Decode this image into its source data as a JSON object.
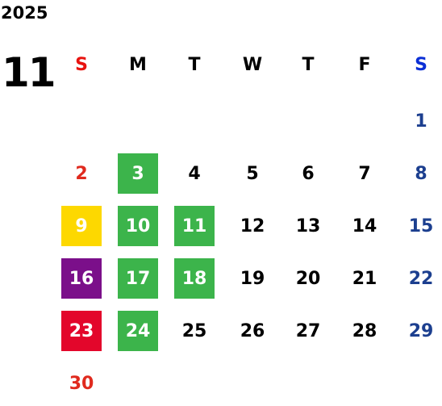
{
  "calendar": {
    "year": "2025",
    "month": "11",
    "weekdays": [
      {
        "label": "S",
        "color": "#e8130f"
      },
      {
        "label": "M",
        "color": "#000000"
      },
      {
        "label": "T",
        "color": "#000000"
      },
      {
        "label": "W",
        "color": "#000000"
      },
      {
        "label": "T",
        "color": "#000000"
      },
      {
        "label": "F",
        "color": "#000000"
      },
      {
        "label": "S",
        "color": "#0b2fd6"
      }
    ],
    "day_colors": [
      "#e02a1e",
      "#000000",
      "#000000",
      "#000000",
      "#000000",
      "#000000",
      "#1c3f8f"
    ],
    "weeks": [
      [
        null,
        null,
        null,
        null,
        null,
        null,
        {
          "day": 1
        }
      ],
      [
        {
          "day": 2
        },
        {
          "day": 3,
          "fill": "#3cb44b"
        },
        {
          "day": 4
        },
        {
          "day": 5
        },
        {
          "day": 6
        },
        {
          "day": 7
        },
        {
          "day": 8
        }
      ],
      [
        {
          "day": 9,
          "fill": "#fdd800"
        },
        {
          "day": 10,
          "fill": "#3cb44b"
        },
        {
          "day": 11,
          "fill": "#3cb44b"
        },
        {
          "day": 12
        },
        {
          "day": 13
        },
        {
          "day": 14
        },
        {
          "day": 15
        }
      ],
      [
        {
          "day": 16,
          "fill": "#7b0f8a"
        },
        {
          "day": 17,
          "fill": "#3cb44b"
        },
        {
          "day": 18,
          "fill": "#3cb44b"
        },
        {
          "day": 19
        },
        {
          "day": 20
        },
        {
          "day": 21
        },
        {
          "day": 22
        }
      ],
      [
        {
          "day": 23,
          "fill": "#e3062b"
        },
        {
          "day": 24,
          "fill": "#3cb44b"
        },
        {
          "day": 25
        },
        {
          "day": 26
        },
        {
          "day": 27
        },
        {
          "day": 28
        },
        {
          "day": 29
        }
      ],
      [
        {
          "day": 30
        },
        null,
        null,
        null,
        null,
        null,
        null
      ]
    ]
  }
}
